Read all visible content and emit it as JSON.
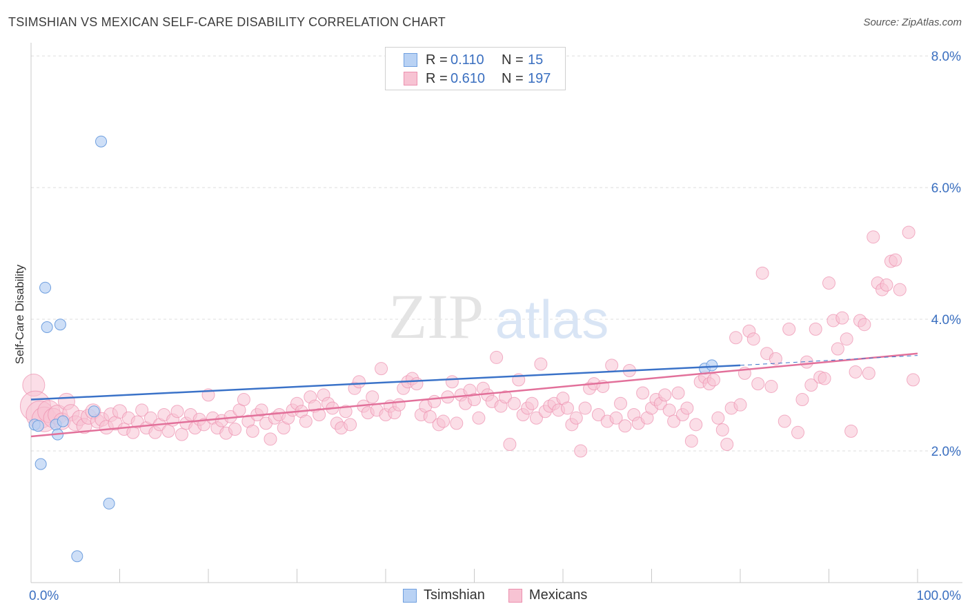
{
  "title": "TSIMSHIAN VS MEXICAN SELF-CARE DISABILITY CORRELATION CHART",
  "source": "Source: ZipAtlas.com",
  "watermark": {
    "zip": "ZIP",
    "atlas": "atlas"
  },
  "legend": {
    "rows": [
      {
        "r_label": "R =",
        "r_value": "0.110",
        "n_label": "N =",
        "n_value": "15",
        "fill": "#b9d2f4",
        "stroke": "#6f9fdf"
      },
      {
        "r_label": "R =",
        "r_value": "0.610",
        "n_label": "N =",
        "n_value": "197",
        "fill": "#f7c3d3",
        "stroke": "#ec8fae"
      }
    ]
  },
  "bottom_legend": [
    {
      "label": "Tsimshian",
      "fill": "#b9d2f4",
      "stroke": "#6f9fdf"
    },
    {
      "label": "Mexicans",
      "fill": "#f7c3d3",
      "stroke": "#ec8fae"
    }
  ],
  "chart_data": {
    "type": "scatter",
    "title": "TSIMSHIAN VS MEXICAN SELF-CARE DISABILITY CORRELATION CHART",
    "xlabel": "",
    "ylabel": "Self-Care Disability",
    "xlim": [
      0,
      100
    ],
    "ylim": [
      0,
      8.2
    ],
    "x_tick_labels": [
      "0.0%",
      "100.0%"
    ],
    "y_ticks": [
      2,
      4,
      6,
      8
    ],
    "y_tick_labels": [
      "2.0%",
      "4.0%",
      "6.0%",
      "8.0%"
    ],
    "grid": true,
    "legend_position": "top-center",
    "colors": {
      "tsimshian": "#6f9fdf",
      "mexicans": "#ec8fae",
      "tsimshian_line": "#3a72c8",
      "mexicans_line": "#e2709a",
      "axis_label": "#3a6fc0"
    },
    "series": [
      {
        "name": "Tsimshian",
        "r": 0.11,
        "n": 15,
        "trend": {
          "x": [
            0,
            80
          ],
          "y": [
            2.78,
            3.3
          ]
        },
        "trend_dashed": {
          "x": [
            80,
            100
          ],
          "y": [
            3.3,
            3.45
          ]
        },
        "points": [
          [
            0.4,
            2.4
          ],
          [
            0.8,
            2.38
          ],
          [
            1.1,
            1.8
          ],
          [
            1.6,
            4.48
          ],
          [
            1.8,
            3.88
          ],
          [
            2.8,
            2.4
          ],
          [
            3.0,
            2.25
          ],
          [
            3.3,
            3.92
          ],
          [
            3.6,
            2.45
          ],
          [
            7.1,
            2.6
          ],
          [
            7.9,
            6.7
          ],
          [
            8.8,
            1.2
          ],
          [
            5.2,
            0.4
          ],
          [
            76.0,
            3.25
          ],
          [
            76.8,
            3.3
          ]
        ]
      },
      {
        "name": "Mexicans",
        "r": 0.61,
        "n": 197,
        "trend": {
          "x": [
            0,
            100
          ],
          "y": [
            2.22,
            3.48
          ]
        },
        "points": [
          [
            0.3,
            3.0,
            16
          ],
          [
            0.5,
            2.68,
            22
          ],
          [
            1.0,
            2.55,
            20
          ],
          [
            1.5,
            2.48,
            18
          ],
          [
            2.0,
            2.6,
            16
          ],
          [
            2.5,
            2.5,
            14
          ],
          [
            3.0,
            2.55,
            14
          ],
          [
            3.5,
            2.45,
            12
          ],
          [
            4.0,
            2.75,
            12
          ],
          [
            4.5,
            2.58,
            12
          ],
          [
            5.0,
            2.42,
            11
          ],
          [
            5.5,
            2.5,
            11
          ],
          [
            6.0,
            2.38,
            11
          ],
          [
            6.5,
            2.52,
            11
          ],
          [
            7.0,
            2.6,
            11
          ],
          [
            7.5,
            2.45,
            10
          ],
          [
            8.0,
            2.48,
            10
          ],
          [
            8.5,
            2.36,
            10
          ],
          [
            9.0,
            2.55,
            10
          ],
          [
            9.5,
            2.42,
            10
          ],
          [
            10.0,
            2.6,
            10
          ],
          [
            10.5,
            2.33,
            9
          ],
          [
            11.0,
            2.5,
            9
          ],
          [
            11.5,
            2.28,
            9
          ],
          [
            12.0,
            2.44,
            9
          ],
          [
            12.5,
            2.62,
            9
          ],
          [
            13.0,
            2.35,
            9
          ],
          [
            13.5,
            2.5,
            9
          ],
          [
            14.0,
            2.28,
            9
          ],
          [
            14.5,
            2.4,
            9
          ],
          [
            15.0,
            2.55,
            9
          ],
          [
            15.5,
            2.3,
            9
          ],
          [
            16.0,
            2.47,
            9
          ],
          [
            16.5,
            2.6,
            9
          ],
          [
            17.0,
            2.25,
            9
          ],
          [
            17.5,
            2.42,
            9
          ],
          [
            18.0,
            2.55,
            9
          ],
          [
            18.5,
            2.35,
            9
          ],
          [
            19.0,
            2.48,
            9
          ],
          [
            19.5,
            2.4,
            9
          ],
          [
            20.0,
            2.85,
            9
          ],
          [
            20.5,
            2.5,
            9
          ],
          [
            21.0,
            2.35,
            9
          ],
          [
            21.5,
            2.46,
            9
          ],
          [
            22.0,
            2.27,
            9
          ],
          [
            22.5,
            2.52,
            9
          ],
          [
            23.0,
            2.33,
            9
          ],
          [
            23.5,
            2.62,
            9
          ],
          [
            24.0,
            2.78,
            9
          ],
          [
            24.5,
            2.45,
            9
          ],
          [
            25.0,
            2.3,
            9
          ],
          [
            25.5,
            2.55,
            9
          ],
          [
            26.0,
            2.62,
            9
          ],
          [
            26.5,
            2.42,
            9
          ],
          [
            27.0,
            2.18,
            9
          ],
          [
            27.5,
            2.5,
            9
          ],
          [
            28.0,
            2.55,
            9
          ],
          [
            28.5,
            2.35,
            9
          ],
          [
            29.0,
            2.5,
            9
          ],
          [
            29.5,
            2.62,
            9
          ],
          [
            30.0,
            2.72,
            9
          ],
          [
            30.5,
            2.6,
            9
          ],
          [
            31.0,
            2.45,
            9
          ],
          [
            31.5,
            2.82,
            9
          ],
          [
            32.0,
            2.68,
            9
          ],
          [
            32.5,
            2.55,
            9
          ],
          [
            33.0,
            2.85,
            9
          ],
          [
            33.5,
            2.72,
            9
          ],
          [
            34.0,
            2.65,
            9
          ],
          [
            34.5,
            2.42,
            9
          ],
          [
            35.0,
            2.35,
            9
          ],
          [
            35.5,
            2.6,
            9
          ],
          [
            36.0,
            2.4,
            9
          ],
          [
            36.5,
            2.95,
            9
          ],
          [
            37.0,
            3.05,
            9
          ],
          [
            37.5,
            2.68,
            9
          ],
          [
            38.0,
            2.58,
            9
          ],
          [
            38.5,
            2.82,
            9
          ],
          [
            39.0,
            2.62,
            9
          ],
          [
            39.5,
            3.25,
            9
          ],
          [
            40.0,
            2.55,
            9
          ],
          [
            40.5,
            2.68,
            9
          ],
          [
            41.0,
            2.58,
            9
          ],
          [
            41.5,
            2.7,
            9
          ],
          [
            42.0,
            2.95,
            9
          ],
          [
            42.5,
            3.05,
            9
          ],
          [
            43.0,
            3.1,
            9
          ],
          [
            43.5,
            3.02,
            9
          ],
          [
            44.0,
            2.55,
            9
          ],
          [
            44.5,
            2.68,
            9
          ],
          [
            45.0,
            2.52,
            9
          ],
          [
            45.5,
            2.75,
            9
          ],
          [
            46.0,
            2.4,
            9
          ],
          [
            46.5,
            2.45,
            9
          ],
          [
            47.0,
            2.82,
            9
          ],
          [
            47.5,
            3.05,
            9
          ],
          [
            48.0,
            2.42,
            9
          ],
          [
            48.5,
            2.85,
            9
          ],
          [
            49.0,
            2.72,
            9
          ],
          [
            49.5,
            2.92,
            9
          ],
          [
            50.0,
            2.78,
            9
          ],
          [
            50.5,
            2.5,
            9
          ],
          [
            51.0,
            2.95,
            9
          ],
          [
            51.5,
            2.85,
            9
          ],
          [
            52.0,
            2.75,
            9
          ],
          [
            52.5,
            3.42,
            9
          ],
          [
            53.0,
            2.68,
            9
          ],
          [
            53.5,
            2.82,
            9
          ],
          [
            54.0,
            2.1,
            9
          ],
          [
            54.5,
            2.72,
            9
          ],
          [
            55.0,
            3.08,
            9
          ],
          [
            55.5,
            2.55,
            9
          ],
          [
            56.0,
            2.65,
            9
          ],
          [
            56.5,
            2.72,
            9
          ],
          [
            57.0,
            2.5,
            9
          ],
          [
            57.5,
            3.32,
            9
          ],
          [
            58.0,
            2.6,
            9
          ],
          [
            58.5,
            2.68,
            9
          ],
          [
            59.0,
            2.72,
            9
          ],
          [
            59.5,
            2.62,
            9
          ],
          [
            60.0,
            2.8,
            9
          ],
          [
            60.5,
            2.65,
            9
          ],
          [
            61.0,
            2.4,
            9
          ],
          [
            61.5,
            2.5,
            9
          ],
          [
            62.0,
            2.0,
            9
          ],
          [
            62.5,
            2.65,
            9
          ],
          [
            63.0,
            2.95,
            9
          ],
          [
            63.5,
            3.02,
            9
          ],
          [
            64.0,
            2.55,
            9
          ],
          [
            64.5,
            2.98,
            9
          ],
          [
            65.0,
            2.45,
            9
          ],
          [
            65.5,
            3.3,
            9
          ],
          [
            66.0,
            2.5,
            9
          ],
          [
            66.5,
            2.72,
            9
          ],
          [
            67.0,
            2.38,
            9
          ],
          [
            67.5,
            3.22,
            9
          ],
          [
            68.0,
            2.55,
            9
          ],
          [
            68.5,
            2.42,
            9
          ],
          [
            69.0,
            2.88,
            9
          ],
          [
            69.5,
            2.5,
            9
          ],
          [
            70.0,
            2.65,
            9
          ],
          [
            70.5,
            2.78,
            9
          ],
          [
            71.0,
            2.72,
            9
          ],
          [
            71.5,
            2.85,
            9
          ],
          [
            72.0,
            2.62,
            9
          ],
          [
            72.5,
            2.45,
            9
          ],
          [
            73.0,
            2.88,
            9
          ],
          [
            73.5,
            2.55,
            9
          ],
          [
            74.0,
            2.65,
            9
          ],
          [
            74.5,
            2.15,
            9
          ],
          [
            75.0,
            2.4,
            9
          ],
          [
            75.5,
            3.05,
            9
          ],
          [
            76.0,
            3.12,
            9
          ],
          [
            76.5,
            3.02,
            9
          ],
          [
            77.0,
            3.08,
            9
          ],
          [
            77.5,
            2.5,
            9
          ],
          [
            78.0,
            2.32,
            9
          ],
          [
            78.5,
            2.1,
            9
          ],
          [
            79.0,
            2.65,
            9
          ],
          [
            79.5,
            3.72,
            9
          ],
          [
            80.0,
            2.7,
            9
          ],
          [
            80.5,
            3.18,
            9
          ],
          [
            81.0,
            3.82,
            9
          ],
          [
            81.5,
            3.7,
            9
          ],
          [
            82.0,
            3.02,
            9
          ],
          [
            82.5,
            4.7,
            9
          ],
          [
            83.0,
            3.48,
            9
          ],
          [
            83.5,
            2.98,
            9
          ],
          [
            84.0,
            3.4,
            9
          ],
          [
            85.0,
            2.45,
            9
          ],
          [
            85.5,
            3.85,
            9
          ],
          [
            86.5,
            2.28,
            9
          ],
          [
            87.0,
            2.78,
            9
          ],
          [
            87.5,
            3.35,
            9
          ],
          [
            88.0,
            3.0,
            9
          ],
          [
            88.5,
            3.85,
            9
          ],
          [
            89.0,
            3.12,
            9
          ],
          [
            89.5,
            3.1,
            9
          ],
          [
            90.0,
            4.55,
            9
          ],
          [
            90.5,
            3.98,
            9
          ],
          [
            91.0,
            3.55,
            9
          ],
          [
            91.5,
            4.02,
            9
          ],
          [
            92.0,
            3.7,
            9
          ],
          [
            92.5,
            2.3,
            9
          ],
          [
            93.0,
            3.2,
            9
          ],
          [
            93.5,
            3.98,
            9
          ],
          [
            94.0,
            3.92,
            9
          ],
          [
            94.5,
            3.18,
            9
          ],
          [
            95.0,
            5.25,
            9
          ],
          [
            95.5,
            4.55,
            9
          ],
          [
            96.0,
            4.45,
            9
          ],
          [
            96.5,
            4.52,
            9
          ],
          [
            97.0,
            4.88,
            9
          ],
          [
            97.5,
            4.9,
            9
          ],
          [
            98.0,
            4.45,
            9
          ],
          [
            99.0,
            5.32,
            9
          ],
          [
            99.5,
            3.08,
            9
          ]
        ]
      }
    ]
  }
}
